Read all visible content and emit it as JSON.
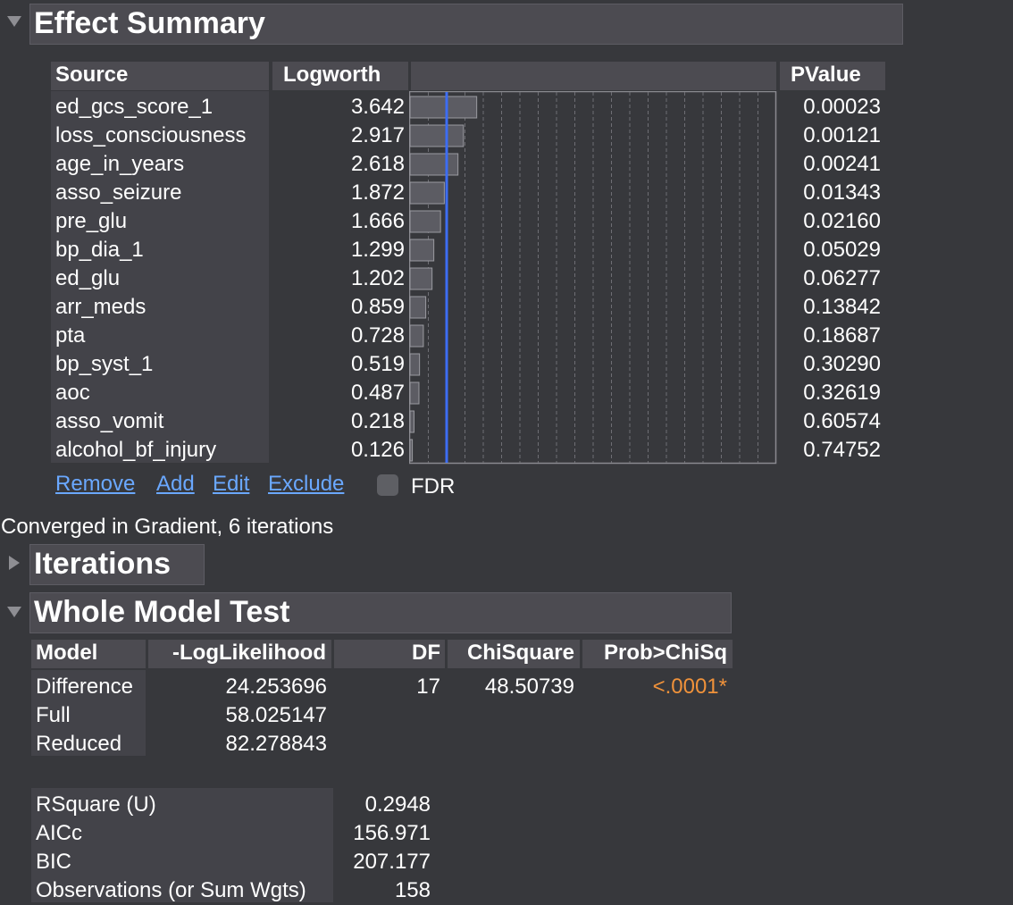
{
  "effect_summary": {
    "title": "Effect Summary",
    "headers": {
      "source": "Source",
      "logworth": "Logworth",
      "pvalue": "PValue"
    },
    "rows": [
      {
        "source": "ed_gcs_score_1",
        "logworth": "3.642",
        "pvalue": "0.00023"
      },
      {
        "source": "loss_consciousness",
        "logworth": "2.917",
        "pvalue": "0.00121"
      },
      {
        "source": "age_in_years",
        "logworth": "2.618",
        "pvalue": "0.00241"
      },
      {
        "source": "asso_seizure",
        "logworth": "1.872",
        "pvalue": "0.01343"
      },
      {
        "source": "pre_glu",
        "logworth": "1.666",
        "pvalue": "0.02160"
      },
      {
        "source": "bp_dia_1",
        "logworth": "1.299",
        "pvalue": "0.05029"
      },
      {
        "source": "ed_glu",
        "logworth": "1.202",
        "pvalue": "0.06277"
      },
      {
        "source": "arr_meds",
        "logworth": "0.859",
        "pvalue": "0.13842"
      },
      {
        "source": "pta",
        "logworth": "0.728",
        "pvalue": "0.18687"
      },
      {
        "source": "bp_syst_1",
        "logworth": "0.519",
        "pvalue": "0.30290"
      },
      {
        "source": "aoc",
        "logworth": "0.487",
        "pvalue": "0.32619"
      },
      {
        "source": "asso_vomit",
        "logworth": "0.218",
        "pvalue": "0.60574"
      },
      {
        "source": "alcohol_bf_injury",
        "logworth": "0.126",
        "pvalue": "0.74752"
      }
    ],
    "actions": {
      "remove": "Remove",
      "add": "Add",
      "edit": "Edit",
      "exclude": "Exclude"
    },
    "fdr_label": "FDR"
  },
  "chart_data": {
    "type": "bar",
    "orientation": "horizontal",
    "categories": [
      "ed_gcs_score_1",
      "loss_consciousness",
      "age_in_years",
      "asso_seizure",
      "pre_glu",
      "bp_dia_1",
      "ed_glu",
      "arr_meds",
      "pta",
      "bp_syst_1",
      "aoc",
      "asso_vomit",
      "alcohol_bf_injury"
    ],
    "values": [
      3.642,
      2.917,
      2.618,
      1.872,
      1.666,
      1.299,
      1.202,
      0.859,
      0.728,
      0.519,
      0.487,
      0.218,
      0.126
    ],
    "xlim": [
      0,
      20
    ],
    "reference_line": 2,
    "grid": "vertical dashed",
    "colors": {
      "bar": "#5c5c63",
      "reference": "#3d6df2"
    }
  },
  "status_text": "Converged in Gradient, 6 iterations",
  "iterations": {
    "title": "Iterations"
  },
  "whole_model": {
    "title": "Whole Model Test",
    "headers": {
      "model": "Model",
      "loglik": "-LogLikelihood",
      "df": "DF",
      "chisq": "ChiSquare",
      "prob": "Prob>ChiSq"
    },
    "rows": [
      {
        "model": "Difference",
        "loglik": "24.253696",
        "df": "17",
        "chisq": "48.50739",
        "prob": "<.0001*"
      },
      {
        "model": "Full",
        "loglik": "58.025147",
        "df": "",
        "chisq": "",
        "prob": ""
      },
      {
        "model": "Reduced",
        "loglik": "82.278843",
        "df": "",
        "chisq": "",
        "prob": ""
      }
    ],
    "stats": [
      {
        "label": "RSquare (U)",
        "value": "0.2948"
      },
      {
        "label": "AICc",
        "value": "156.971"
      },
      {
        "label": "BIC",
        "value": "207.177"
      },
      {
        "label": "Observations (or Sum Wgts)",
        "value": "158"
      }
    ],
    "colors": {
      "significant": "#f0923a"
    }
  }
}
